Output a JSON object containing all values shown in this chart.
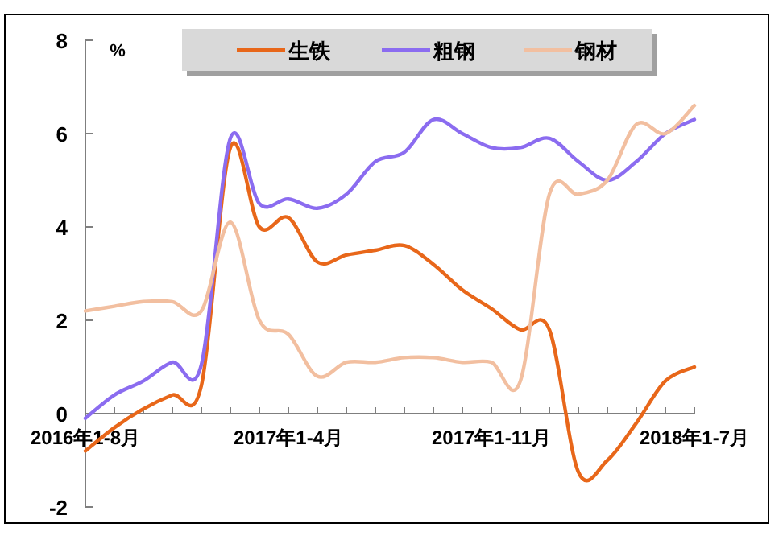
{
  "chart_data": {
    "type": "line",
    "ylabel": "%",
    "categories": [
      "2016年1-8月",
      null,
      null,
      null,
      null,
      null,
      null,
      "2017年1-4月",
      null,
      null,
      null,
      null,
      null,
      null,
      "2017年1-11月",
      null,
      null,
      null,
      null,
      null,
      null,
      "2018年1-7月"
    ],
    "series": [
      {
        "name": "生铁",
        "color": "#e8671a",
        "values": [
          -0.8,
          -0.3,
          0.1,
          0.4,
          0.6,
          5.7,
          4.0,
          4.2,
          3.25,
          3.4,
          3.5,
          3.6,
          3.2,
          2.65,
          2.25,
          1.8,
          1.8,
          -1.25,
          -1.0,
          -0.2,
          0.7,
          1.0
        ]
      },
      {
        "name": "粗钢",
        "color": "#8b6cf0",
        "values": [
          -0.1,
          0.4,
          0.7,
          1.1,
          1.05,
          5.9,
          4.5,
          4.6,
          4.4,
          4.7,
          5.4,
          5.6,
          6.3,
          6.0,
          5.7,
          5.7,
          5.9,
          5.4,
          5.0,
          5.4,
          6.0,
          6.3
        ]
      },
      {
        "name": "钢材",
        "color": "#f2bfa0",
        "values": [
          2.2,
          2.3,
          2.4,
          2.4,
          2.2,
          4.1,
          2.0,
          1.7,
          0.8,
          1.1,
          1.1,
          1.2,
          1.2,
          1.1,
          1.1,
          0.7,
          4.7,
          4.7,
          5.0,
          6.2,
          6.0,
          6.6
        ]
      }
    ],
    "ylim": [
      -2,
      8
    ],
    "yticks": [
      -2,
      0,
      2,
      4,
      6,
      8
    ],
    "legend": "top"
  }
}
